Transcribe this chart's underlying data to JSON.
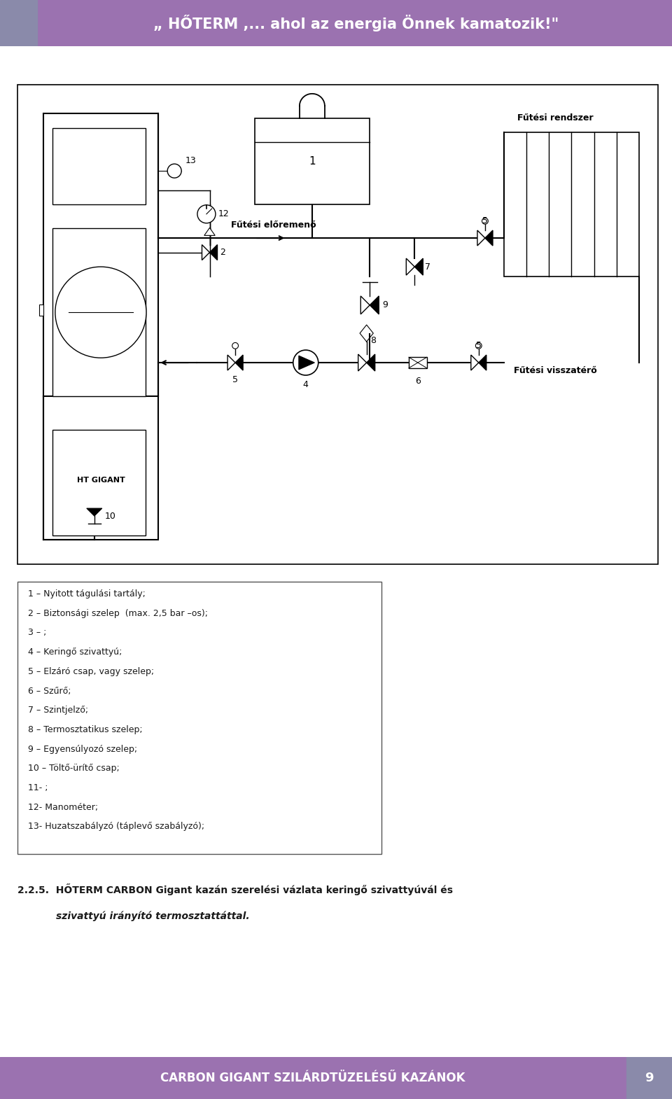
{
  "header_text": "„ HŐTERM ,... ahol az energia Önnek kamatozik!\"",
  "header_bg": "#9b72b0",
  "header_left_bg": "#8a8aaa",
  "footer_text": "CARBON GIGANT SZILÁRDTÜZELÉSŰ KAZÁNOK",
  "footer_page": "9",
  "footer_bg": "#9b72b0",
  "footer_right_bg": "#8a8aaa",
  "legend_items": [
    "1 – Nyitott tágulási tartály;",
    "2 – Biztonsági szelep  (max. 2,5 bar –os);",
    "3 – ;",
    "4 – Keringő szivattyú;",
    "5 – Elzáró csap, vagy szelep;",
    "6 – Szűrő;",
    "7 – Szintjelző;",
    "8 – Termosztatikus szelep;",
    "9 – Egyensúlyozó szelep;",
    "10 – Töltő-ürítő csap;",
    "11- ;",
    "12- Manométer;",
    "13- Huzatszabályzó (táplevő szabályzó);"
  ],
  "caption_line1": "2.2.5.  HŐTERM CARBON Gigant kazán szerelési vázlata keringő szivattyúvál és",
  "caption_line2": "szivattyú irányító termosztattáttal.",
  "lbl_elomeno": "Fűtési előremenő",
  "lbl_rendszer": "Fűtési rendszer",
  "lbl_visszatero": "Fűtési visszatérő",
  "lbl_gigant": "HT GIGANT",
  "text_color": "#1a1a1a",
  "page_bg": "#ffffff"
}
